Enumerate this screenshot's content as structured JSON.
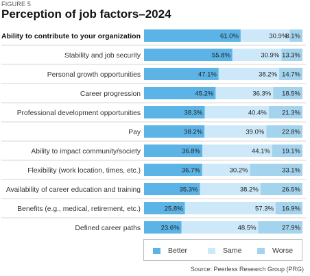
{
  "figure_label": "FIGURE 5",
  "source": "Source: Peerless Research Group (PRG)",
  "colors": {
    "better": "#5bb4e5",
    "same": "#cde9f9",
    "worse": "#a4d3ee"
  },
  "chart_data": {
    "type": "bar",
    "orientation": "horizontal",
    "stacked": true,
    "title": "Perception of job factors–2024",
    "legend_position": "bottom-right",
    "categories": [
      "Ability to contribute to your organization",
      "Stability and job security",
      "Personal growth opportunities",
      "Career progression",
      "Professional development opportunities",
      "Pay",
      "Ability to impact community/society",
      "Flexibility (work location, times, etc.)",
      "Availability of career education and training",
      "Benefits (e.g., medical, retirement, etc.)",
      "Defined career paths"
    ],
    "bold_category": "Ability to contribute to your organization",
    "series": [
      {
        "name": "Better",
        "color": "#5bb4e5",
        "values": [
          61.0,
          55.8,
          47.1,
          45.2,
          38.3,
          38.2,
          36.8,
          36.7,
          35.3,
          25.8,
          23.6
        ],
        "labels": [
          "61.0%",
          "55.8%",
          "47.1%",
          "45.2%",
          "38.3%",
          "38.2%",
          "36.8%",
          "36.7%",
          "35.3%",
          "25.8%",
          "23.6%"
        ]
      },
      {
        "name": "Same",
        "color": "#cde9f9",
        "values": [
          30.9,
          30.9,
          38.2,
          36.3,
          40.4,
          39.0,
          44.1,
          30.2,
          38.2,
          57.3,
          48.5
        ],
        "labels": [
          "30.9%",
          "30.9%",
          "38.2%",
          "36.3%",
          "40.4%",
          "39.0%",
          "44.1%",
          "30.2%",
          "38.2%",
          "57.3%",
          "48.5%"
        ]
      },
      {
        "name": "Worse",
        "color": "#a4d3ee",
        "values": [
          8.1,
          13.3,
          14.7,
          18.5,
          21.3,
          22.8,
          19.1,
          33.1,
          26.5,
          16.9,
          27.9
        ],
        "labels": [
          "8.1%",
          "13.3%",
          "14.7%",
          "18.5%",
          "21.3%",
          "22.8%",
          "19.1%",
          "33.1%",
          "26.5%",
          "16.9%",
          "27.9%"
        ]
      }
    ]
  }
}
